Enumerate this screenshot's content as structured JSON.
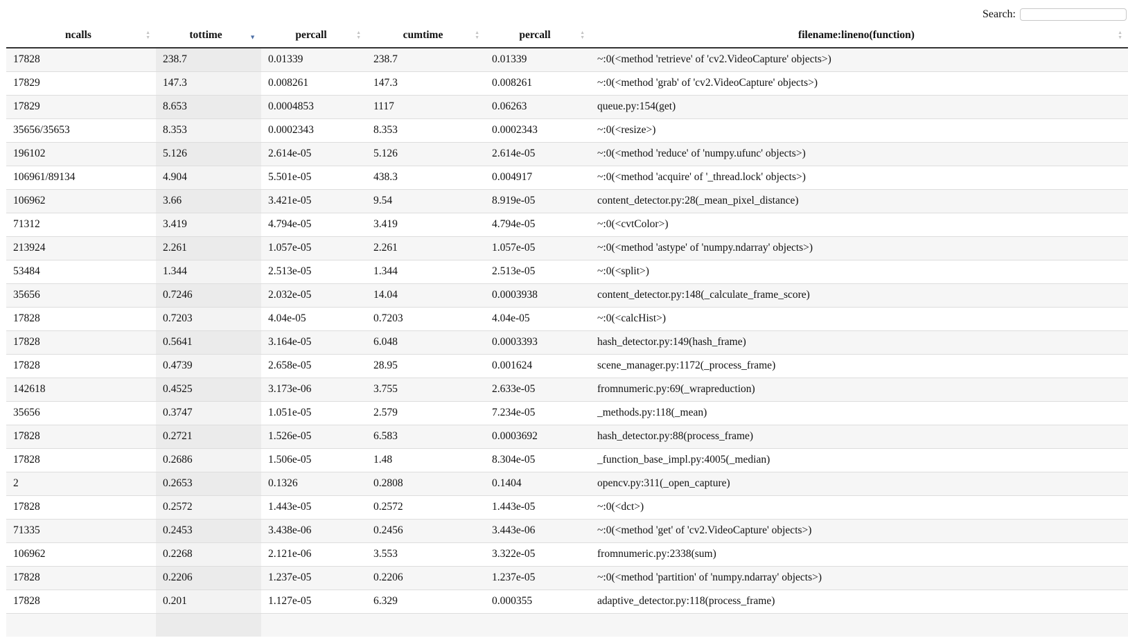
{
  "search": {
    "label": "Search:",
    "value": "",
    "placeholder": ""
  },
  "table": {
    "columns": [
      "ncalls",
      "tottime",
      "percall",
      "cumtime",
      "percall",
      "filename:lineno(function)"
    ],
    "sorted_column": "tottime",
    "sort_direction": "descending",
    "rows": [
      [
        "17828",
        "238.7",
        "0.01339",
        "238.7",
        "0.01339",
        "~:0(<method 'retrieve' of 'cv2.VideoCapture' objects>)"
      ],
      [
        "17829",
        "147.3",
        "0.008261",
        "147.3",
        "0.008261",
        "~:0(<method 'grab' of 'cv2.VideoCapture' objects>)"
      ],
      [
        "17829",
        "8.653",
        "0.0004853",
        "1117",
        "0.06263",
        "queue.py:154(get)"
      ],
      [
        "35656/35653",
        "8.353",
        "0.0002343",
        "8.353",
        "0.0002343",
        "~:0(<resize>)"
      ],
      [
        "196102",
        "5.126",
        "2.614e-05",
        "5.126",
        "2.614e-05",
        "~:0(<method 'reduce' of 'numpy.ufunc' objects>)"
      ],
      [
        "106961/89134",
        "4.904",
        "5.501e-05",
        "438.3",
        "0.004917",
        "~:0(<method 'acquire' of '_thread.lock' objects>)"
      ],
      [
        "106962",
        "3.66",
        "3.421e-05",
        "9.54",
        "8.919e-05",
        "content_detector.py:28(_mean_pixel_distance)"
      ],
      [
        "71312",
        "3.419",
        "4.794e-05",
        "3.419",
        "4.794e-05",
        "~:0(<cvtColor>)"
      ],
      [
        "213924",
        "2.261",
        "1.057e-05",
        "2.261",
        "1.057e-05",
        "~:0(<method 'astype' of 'numpy.ndarray' objects>)"
      ],
      [
        "53484",
        "1.344",
        "2.513e-05",
        "1.344",
        "2.513e-05",
        "~:0(<split>)"
      ],
      [
        "35656",
        "0.7246",
        "2.032e-05",
        "14.04",
        "0.0003938",
        "content_detector.py:148(_calculate_frame_score)"
      ],
      [
        "17828",
        "0.7203",
        "4.04e-05",
        "0.7203",
        "4.04e-05",
        "~:0(<calcHist>)"
      ],
      [
        "17828",
        "0.5641",
        "3.164e-05",
        "6.048",
        "0.0003393",
        "hash_detector.py:149(hash_frame)"
      ],
      [
        "17828",
        "0.4739",
        "2.658e-05",
        "28.95",
        "0.001624",
        "scene_manager.py:1172(_process_frame)"
      ],
      [
        "142618",
        "0.4525",
        "3.173e-06",
        "3.755",
        "2.633e-05",
        "fromnumeric.py:69(_wrapreduction)"
      ],
      [
        "35656",
        "0.3747",
        "1.051e-05",
        "2.579",
        "7.234e-05",
        "_methods.py:118(_mean)"
      ],
      [
        "17828",
        "0.2721",
        "1.526e-05",
        "6.583",
        "0.0003692",
        "hash_detector.py:88(process_frame)"
      ],
      [
        "17828",
        "0.2686",
        "1.506e-05",
        "1.48",
        "8.304e-05",
        "_function_base_impl.py:4005(_median)"
      ],
      [
        "2",
        "0.2653",
        "0.1326",
        "0.2808",
        "0.1404",
        "opencv.py:311(_open_capture)"
      ],
      [
        "17828",
        "0.2572",
        "1.443e-05",
        "0.2572",
        "1.443e-05",
        "~:0(<dct>)"
      ],
      [
        "71335",
        "0.2453",
        "3.438e-06",
        "0.2456",
        "3.443e-06",
        "~:0(<method 'get' of 'cv2.VideoCapture' objects>)"
      ],
      [
        "106962",
        "0.2268",
        "2.121e-06",
        "3.553",
        "3.322e-05",
        "fromnumeric.py:2338(sum)"
      ],
      [
        "17828",
        "0.2206",
        "1.237e-05",
        "0.2206",
        "1.237e-05",
        "~:0(<method 'partition' of 'numpy.ndarray' objects>)"
      ],
      [
        "17828",
        "0.201",
        "1.127e-05",
        "6.329",
        "0.000355",
        "adaptive_detector.py:118(process_frame)"
      ]
    ]
  },
  "colors": {
    "sort_active": "#4c6fa6",
    "sort_inactive": "#c4c4c4",
    "row_stripe": "#f6f6f6",
    "sorted_column_shade": "#ebebeb"
  }
}
